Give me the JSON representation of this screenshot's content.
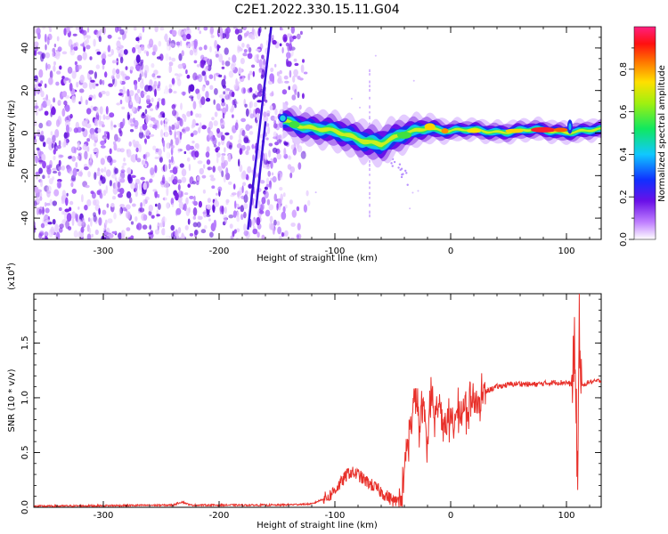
{
  "title": "C2E1.2022.330.15.11.G04",
  "colors": {
    "signal_line": "#e8302a",
    "spectrogram_noise": "#7a22e6",
    "spectrogram_core": "#22c8f0",
    "spectrogram_peak": "#ff2030"
  },
  "chart_data": [
    {
      "type": "heatmap",
      "xlabel": "Height of straight line (km)",
      "ylabel": "Frequency (Hz)",
      "xlim": [
        -360,
        130
      ],
      "ylim": [
        -50,
        50
      ],
      "xticks": [
        -300,
        -200,
        -100,
        0,
        100
      ],
      "yticks": [
        -40,
        -20,
        0,
        20,
        40
      ],
      "colorbar": {
        "label": "Normalized spectral amplitude",
        "range": [
          0,
          1
        ],
        "ticks": [
          "0.0",
          "0.2",
          "0.4",
          "0.6",
          "0.8"
        ],
        "colormap": "rainbow (white-violet-blue-cyan-green-yellow-red-magenta)"
      },
      "features": [
        {
          "kind": "noise_region",
          "x_range": [
            -360,
            -120
          ],
          "y_range": [
            -50,
            50
          ],
          "amplitude": 0.15
        },
        {
          "kind": "diagonal_streak",
          "from": [
            -175,
            -45
          ],
          "to": [
            -155,
            50
          ],
          "amplitude": 0.1
        },
        {
          "kind": "diagonal_streak",
          "from": [
            -168,
            -35
          ],
          "to": [
            -160,
            5
          ],
          "amplitude": 0.1
        },
        {
          "kind": "faint_vertical_line",
          "x": -70,
          "y_range": [
            -40,
            30
          ],
          "amplitude": 0.05
        },
        {
          "kind": "central_band",
          "x_range": [
            -145,
            130
          ],
          "center_hz": [
            [
              -145,
              6
            ],
            [
              -60,
              -5
            ],
            [
              -20,
              3
            ],
            [
              0,
              1
            ],
            [
              130,
              1
            ]
          ],
          "halfwidth_hz": [
            [
              -145,
              3
            ],
            [
              -60,
              4
            ],
            [
              0,
              2
            ],
            [
              130,
              2
            ]
          ],
          "peak_amplitude": 0.85,
          "peak_x": 85
        }
      ]
    },
    {
      "type": "line",
      "xlabel": "Height of straight line (km)",
      "ylabel": "SNR (10 * v/v)",
      "multiplier_label": "(x10",
      "multiplier_exp": "4",
      "multiplier_close": ")",
      "xlim": [
        -360,
        130
      ],
      "ylim": [
        0,
        1.95
      ],
      "xticks": [
        -300,
        -200,
        -100,
        0,
        100
      ],
      "yticks": [
        "0.0",
        "0.5",
        "1.0",
        "1.5"
      ],
      "series": [
        {
          "x": [
            -360,
            -300,
            -240,
            -232,
            -225,
            -150,
            -120,
            -105,
            -95,
            -88,
            -80,
            -75,
            -65,
            -55,
            -48,
            -42,
            -38,
            -34,
            -30,
            -27,
            -24,
            -20,
            -17,
            -14,
            -10,
            -6,
            -3,
            0,
            5,
            10,
            15,
            20,
            25,
            30,
            35,
            40,
            50,
            60,
            70,
            80,
            90,
            100,
            104,
            107,
            109,
            110,
            111,
            112,
            114,
            118,
            125,
            130
          ],
          "y": [
            0.01,
            0.015,
            0.02,
            0.05,
            0.02,
            0.02,
            0.03,
            0.1,
            0.22,
            0.32,
            0.3,
            0.25,
            0.18,
            0.1,
            0.05,
            0.1,
            0.55,
            0.8,
            1.05,
            0.7,
            0.95,
            0.6,
            1.1,
            0.8,
            0.95,
            0.75,
            0.85,
            0.75,
            0.82,
            0.87,
            0.9,
            0.97,
            1.02,
            1.05,
            1.08,
            1.1,
            1.12,
            1.13,
            1.12,
            1.13,
            1.14,
            1.14,
            1.12,
            1.4,
            0.6,
            0.3,
            1.9,
            1.2,
            1.1,
            1.14,
            1.15,
            1.16
          ]
        }
      ]
    }
  ]
}
